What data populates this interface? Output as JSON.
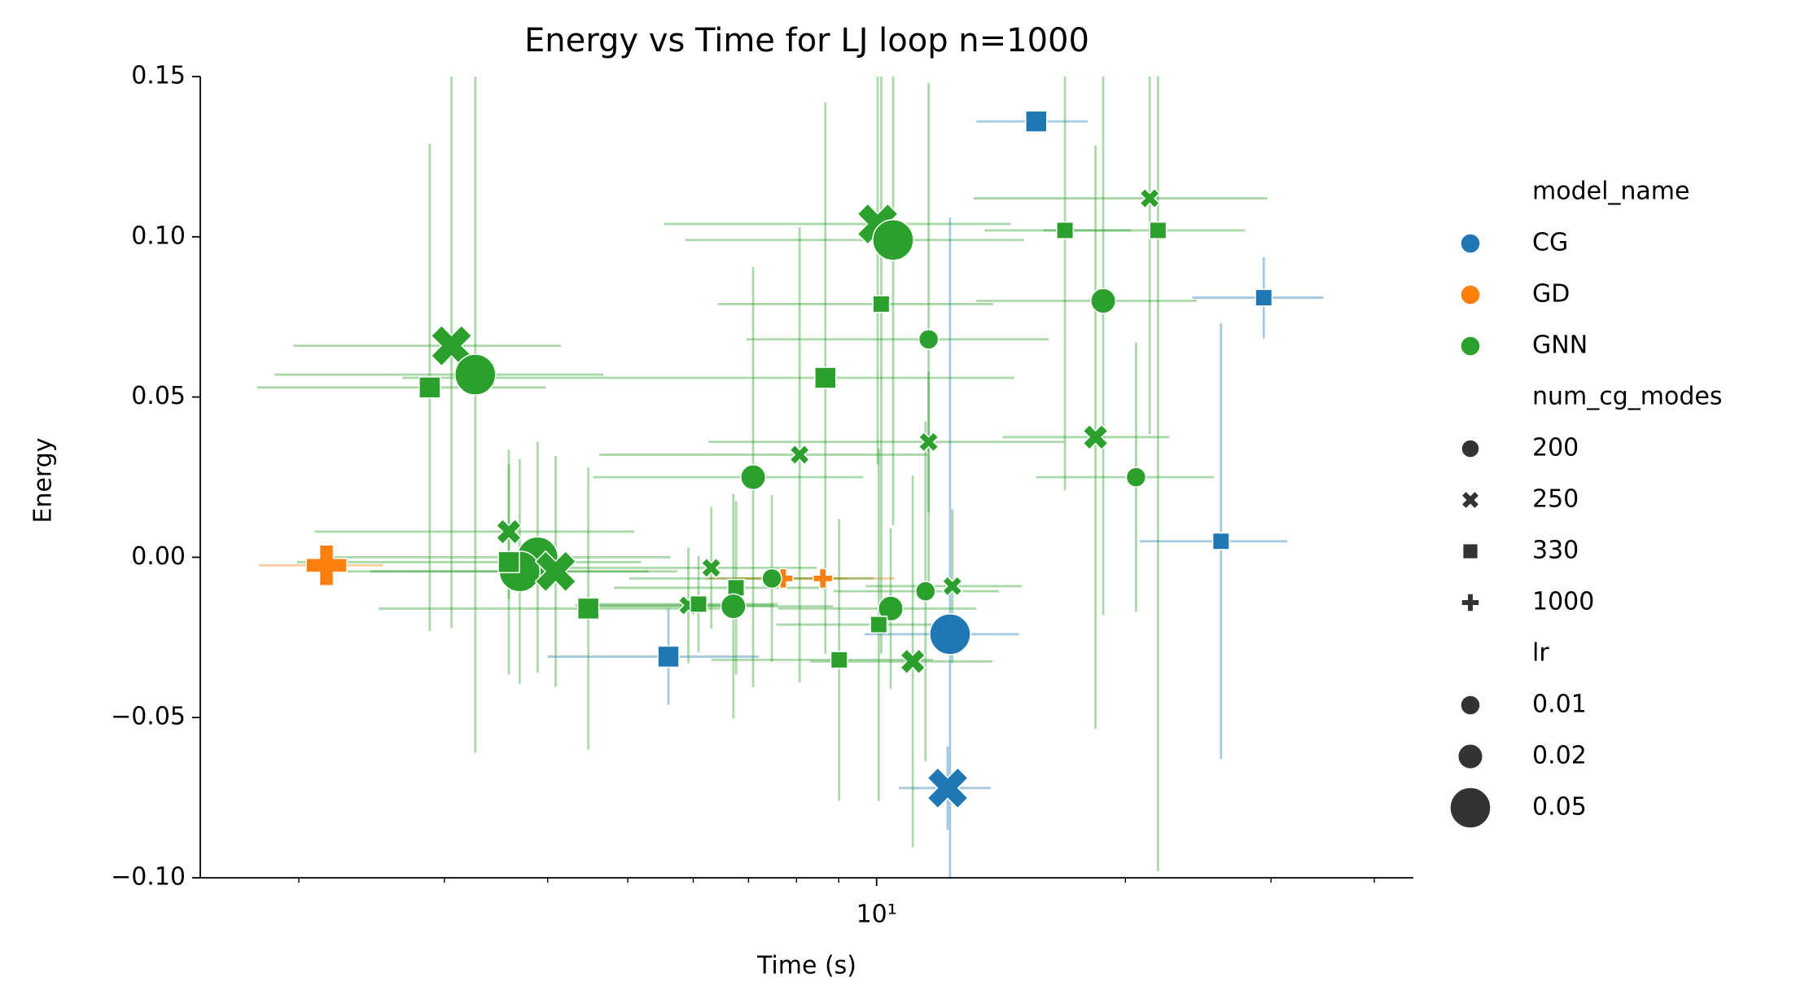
{
  "chart_data": {
    "type": "scatter",
    "title": "Energy vs Time for LJ loop n=1000",
    "x_label": "Time (s)",
    "y_label": "Energy",
    "xscale": "log",
    "xlim": [
      1.52,
      44.6
    ],
    "ylim": [
      -0.1,
      0.15
    ],
    "xticks": [
      {
        "value": 10,
        "label": "10¹"
      }
    ],
    "xminorticks": [
      2,
      3,
      4,
      5,
      6,
      7,
      8,
      9,
      20,
      30,
      40
    ],
    "yticks": [
      {
        "value": -0.1,
        "label": "−0.10"
      },
      {
        "value": -0.05,
        "label": "−0.05"
      },
      {
        "value": 0,
        "label": "0.00"
      },
      0.05,
      {
        "value": 0.1,
        "label": "0.10"
      },
      0.15
    ],
    "legend": {
      "position": "right",
      "hue_title": "model_name",
      "style_title": "num_cg_modes",
      "styles": [
        200,
        250,
        330,
        1000
      ],
      "style_markers": [
        "circle",
        "x",
        "square",
        "plus"
      ],
      "size_title": "lr",
      "sizes": [
        0.01,
        0.02,
        0.05
      ]
    },
    "series": [
      {
        "name": "CG",
        "color": "#1f77b4",
        "x": [
          15.6,
          29.4,
          26.1,
          5.6,
          12.27,
          12.19
        ],
        "values": [
          0.136,
          0.081,
          0.005,
          -0.031,
          -0.024,
          -0.072
        ],
        "xerr": [
          2.4,
          5.3,
          5.3,
          1.6,
          2.6,
          1.55
        ],
        "yerr": [
          0.003,
          0.0127,
          0.068,
          0.015,
          0.13,
          0.013
        ],
        "style": [
          330,
          330,
          330,
          330,
          200,
          250
        ],
        "size": [
          0.02,
          0.01,
          0.01,
          0.02,
          0.05,
          0.05
        ]
      },
      {
        "name": "GD",
        "color": "#ff7f0e",
        "x": [
          2.16,
          8.61,
          7.71
        ],
        "values": [
          -0.0025,
          -0.0066,
          -0.0066
        ],
        "xerr": [
          0.37,
          1.9,
          1.5
        ],
        "yerr": [
          0.002,
          0.003,
          0.003
        ],
        "style": [
          1000,
          1000,
          1000
        ],
        "size": [
          0.05,
          0.01,
          0.01
        ]
      },
      {
        "name": "GNN",
        "color": "#2ca02c",
        "x": [
          10.03,
          10.47,
          21.4,
          16.9,
          21.9,
          18.8,
          10.13,
          11.56,
          8.67,
          3.06,
          3.27,
          2.88,
          8.07,
          11.56,
          18.4,
          7.09,
          20.6,
          3.59,
          3.89,
          3.7,
          4.09,
          3.59,
          4.48,
          6.31,
          6.76,
          7.47,
          5.92,
          6.09,
          6.71,
          10.4,
          11.46,
          12.35,
          10.06,
          9.01,
          11.06
        ],
        "values": [
          0.104,
          0.099,
          0.112,
          0.102,
          0.102,
          0.08,
          0.079,
          0.068,
          0.056,
          0.066,
          0.057,
          0.053,
          0.032,
          0.036,
          0.0375,
          0.025,
          0.025,
          0.008,
          0.0,
          -0.0044,
          -0.0044,
          -0.0015,
          -0.016,
          -0.0033,
          -0.0095,
          -0.0066,
          -0.015,
          -0.0146,
          -0.0153,
          -0.016,
          -0.0106,
          -0.009,
          -0.021,
          -0.032,
          -0.0325
        ],
        "xerr": [
          4.5,
          4.6,
          8.3,
          3.4,
          6.0,
          5.6,
          3.7,
          4.6,
          6.0,
          1.09,
          1.4,
          1.1,
          3.45,
          5.3,
          4.2,
          2.55,
          5.0,
          1.5,
          1.74,
          1.6,
          1.65,
          1.6,
          1.98,
          2.15,
          1.95,
          2.45,
          1.6,
          1.5,
          2.15,
          2.8,
          2.6,
          2.65,
          2.5,
          2.7,
          2.75
        ],
        "yerr": [
          0.075,
          0.089,
          0.0735,
          0.081,
          0.2,
          0.098,
          0.109,
          0.08,
          0.086,
          0.088,
          0.118,
          0.076,
          0.071,
          0.022,
          0.091,
          0.0655,
          0.042,
          0.021,
          0.036,
          0.035,
          0.036,
          0.035,
          0.044,
          0.019,
          0.027,
          0.026,
          0.018,
          0.015,
          0.035,
          0.025,
          0.053,
          0.024,
          0.055,
          0.044,
          0.058
        ],
        "style": [
          250,
          200,
          250,
          330,
          330,
          200,
          330,
          200,
          330,
          250,
          200,
          330,
          250,
          250,
          250,
          200,
          200,
          250,
          200,
          200,
          250,
          330,
          330,
          250,
          330,
          200,
          250,
          330,
          200,
          200,
          200,
          250,
          330,
          330,
          250
        ],
        "size": [
          0.05,
          0.05,
          0.01,
          0.01,
          0.01,
          0.02,
          0.01,
          0.01,
          0.02,
          0.05,
          0.05,
          0.02,
          0.01,
          0.01,
          0.02,
          0.02,
          0.01,
          0.02,
          0.05,
          0.05,
          0.05,
          0.02,
          0.02,
          0.01,
          0.01,
          0.01,
          0.01,
          0.01,
          0.02,
          0.02,
          0.01,
          0.01,
          0.01,
          0.01,
          0.02
        ]
      }
    ]
  }
}
